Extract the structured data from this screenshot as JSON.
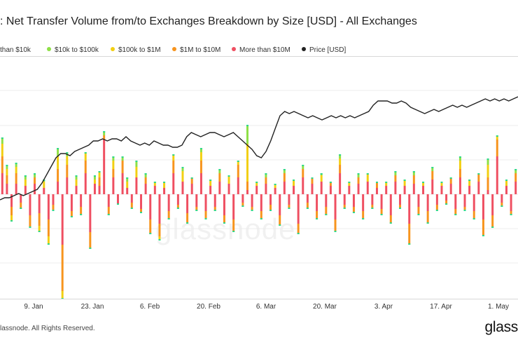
{
  "title": ": Net Transfer Volume from/to Exchanges Breakdown by Size [USD] - All Exchanges",
  "footer": "lassnode. All Rights Reserved.",
  "logo": "glass",
  "watermark": "glassnode",
  "colors": {
    "lt10k": "#8ee046",
    "s10k100k": "#8ee046",
    "s100k1m": "#f2cf12",
    "s1m10m": "#f7941d",
    "gt10m": "#ef4f61",
    "price": "#222222",
    "top_accent": "#2fd98a"
  },
  "chart_data": {
    "type": "bar",
    "stacked": true,
    "legend": [
      {
        "label": "than $10k",
        "color": "#8ee046"
      },
      {
        "label": "$10k to $100k",
        "color": "#8ee046"
      },
      {
        "label": "$100k to $1M",
        "color": "#f2cf12"
      },
      {
        "label": "$1M to $10M",
        "color": "#f7941d"
      },
      {
        "label": "More than $10M",
        "color": "#ef4f61"
      },
      {
        "label": "Price [USD]",
        "color": "#222222"
      }
    ],
    "x_ticks": [
      "9. Jan",
      "23. Jan",
      "6. Feb",
      "20. Feb",
      "6. Mar",
      "20. Mar",
      "3. Apr",
      "17. Apr",
      "1. May"
    ],
    "ylim": [
      -1.0,
      1.0
    ],
    "price_ylim": [
      0,
      1
    ],
    "bars": [
      {
        "gt10m": 0.1,
        "s1m10m": 0.08,
        "s100k1m": 0.06,
        "s10k100k": 0.03
      },
      {
        "gt10m": 0.05,
        "s1m10m": 0.04,
        "s100k1m": 0.03,
        "s10k100k": 0.02
      },
      {
        "gt10m": -0.06,
        "s1m10m": -0.04,
        "s100k1m": -0.03
      },
      {
        "gt10m": 0.05,
        "s1m10m": 0.05,
        "s100k1m": 0.03,
        "s10k100k": 0.02
      },
      {
        "gt10m": -0.04,
        "s1m10m": -0.03
      },
      {
        "gt10m": 0.04,
        "s100k1m": 0.03,
        "s10k100k": 0.02
      },
      {
        "gt10m": -0.1,
        "s1m10m": -0.06
      },
      {
        "gt10m": 0.05,
        "s1m10m": 0.03,
        "s10k100k": 0.02
      },
      {
        "gt10m": -0.09,
        "s1m10m": -0.06,
        "s100k1m": -0.03
      },
      {
        "gt10m": 0.03,
        "s100k1m": 0.03,
        "s10k100k": 0.01
      },
      {
        "gt10m": -0.12,
        "s1m10m": -0.08,
        "s100k1m": -0.04
      },
      {
        "gt10m": -0.05,
        "s1m10m": -0.03
      },
      {
        "gt10m": 0.06,
        "s1m10m": 0.06,
        "s100k1m": 0.06,
        "s10k100k": 0.04
      },
      {
        "gt10m": -0.24,
        "s1m10m": -0.22,
        "s100k1m": -0.04
      },
      {
        "gt10m": 0.08,
        "s1m10m": 0.06,
        "s100k1m": 0.04,
        "s10k100k": 0.02
      },
      {
        "gt10m": -0.08,
        "s1m10m": -0.03
      },
      {
        "gt10m": 0.04,
        "s100k1m": 0.03,
        "s10k100k": 0.02
      },
      {
        "gt10m": -0.06,
        "s1m10m": -0.04
      },
      {
        "gt10m": 0.1,
        "s1m10m": 0.06,
        "s100k1m": 0.04
      },
      {
        "gt10m": -0.18,
        "s1m10m": -0.08
      },
      {
        "gt10m": 0.05,
        "s100k1m": 0.02,
        "s10k100k": 0.02
      },
      {
        "gt10m": 0.04,
        "s1m10m": 0.04,
        "s100k1m": 0.03
      },
      {
        "gt10m": 0.26,
        "s1m10m": 0.02,
        "s10k100k": 0.02
      },
      {
        "gt10m": -0.06,
        "s1m10m": -0.04
      },
      {
        "gt10m": 0.08,
        "s1m10m": 0.04,
        "s100k1m": 0.04,
        "s10k100k": 0.02
      },
      {
        "gt10m": -0.05
      },
      {
        "gt10m": 0.1,
        "s1m10m": 0.06,
        "s10k100k": 0.02
      },
      {
        "gt10m": 0.03,
        "s100k1m": 0.03,
        "s10k100k": 0.02
      },
      {
        "gt10m": -0.04,
        "s1m10m": -0.03
      },
      {
        "gt10m": 0.08,
        "s100k1m": 0.05,
        "s10k100k": 0.03
      },
      {
        "gt10m": -0.07,
        "s1m10m": -0.02
      },
      {
        "gt10m": 0.05,
        "s1m10m": 0.03,
        "s10k100k": 0.02
      },
      {
        "gt10m": -0.12,
        "s1m10m": -0.07
      },
      {
        "gt10m": 0.04,
        "s100k1m": 0.02
      },
      {
        "gt10m": -0.14,
        "s1m10m": -0.06,
        "s100k1m": -0.02
      },
      {
        "gt10m": 0.03,
        "s100k1m": 0.03
      },
      {
        "gt10m": -0.08,
        "s1m10m": -0.04
      },
      {
        "gt10m": 0.1,
        "s1m10m": 0.06,
        "s100k1m": 0.03
      },
      {
        "gt10m": -0.05,
        "s1m10m": -0.02
      },
      {
        "gt10m": 0.06,
        "s100k1m": 0.05,
        "s10k100k": 0.02
      },
      {
        "gt10m": -0.09,
        "s1m10m": -0.05
      },
      {
        "gt10m": 0.05,
        "s1m10m": 0.03
      },
      {
        "gt10m": -0.06,
        "s1m10m": -0.02
      },
      {
        "gt10m": 0.1,
        "s1m10m": 0.06,
        "s100k1m": 0.04,
        "s10k100k": 0.02
      },
      {
        "gt10m": -0.08,
        "s1m10m": -0.04
      },
      {
        "gt10m": 0.04,
        "s100k1m": 0.03
      },
      {
        "gt10m": -0.06,
        "s1m10m": -0.02
      },
      {
        "gt10m": 0.06,
        "s1m10m": 0.04,
        "s10k100k": 0.02
      },
      {
        "gt10m": -0.1,
        "s1m10m": -0.04
      },
      {
        "gt10m": 0.05,
        "s100k1m": 0.04
      },
      {
        "gt10m": -0.12,
        "s1m10m": -0.06
      },
      {
        "gt10m": 0.08,
        "s1m10m": 0.06,
        "s100k1m": 0.02
      },
      {
        "gt10m": -0.04,
        "s1m10m": -0.02
      },
      {
        "gt10m": 0.02,
        "s1m10m": 0.04,
        "s100k1m": 0.18,
        "s10k100k": 0.09
      },
      {
        "gt10m": -0.06,
        "s1m10m": -0.02
      },
      {
        "gt10m": 0.04,
        "s100k1m": 0.02
      },
      {
        "gt10m": -0.08,
        "s1m10m": -0.04
      },
      {
        "gt10m": 0.05,
        "s1m10m": 0.03,
        "s10k100k": 0.02
      },
      {
        "gt10m": -0.05,
        "s1m10m": -0.03
      },
      {
        "gt10m": 0.03,
        "s100k1m": 0.02
      },
      {
        "gt10m": -0.1,
        "s1m10m": -0.05
      },
      {
        "gt10m": 0.06,
        "s1m10m": 0.04,
        "s10k100k": 0.02
      },
      {
        "gt10m": -0.05,
        "s1m10m": -0.02
      },
      {
        "gt10m": 0.04,
        "s100k1m": 0.03
      },
      {
        "gt10m": -0.14,
        "s1m10m": -0.05
      },
      {
        "gt10m": 0.08,
        "s1m10m": 0.04,
        "s10k100k": 0.02
      },
      {
        "gt10m": -0.04,
        "s1m10m": -0.03
      },
      {
        "gt10m": 0.05,
        "s1m10m": 0.03
      },
      {
        "gt10m": -0.08,
        "s1m10m": -0.04
      },
      {
        "gt10m": 0.06,
        "s100k1m": 0.03,
        "s10k100k": 0.01
      },
      {
        "gt10m": -0.06,
        "s1m10m": -0.04
      },
      {
        "gt10m": 0.04,
        "s1m10m": 0.02
      },
      {
        "gt10m": -0.12,
        "s1m10m": -0.06
      },
      {
        "gt10m": 0.1,
        "s1m10m": 0.04,
        "s100k1m": 0.03,
        "s10k100k": 0.02
      },
      {
        "gt10m": -0.05,
        "s1m10m": -0.02
      },
      {
        "gt10m": 0.04,
        "s100k1m": 0.02
      },
      {
        "gt10m": -0.06,
        "s1m10m": -0.03
      },
      {
        "gt10m": 0.05,
        "s1m10m": 0.03,
        "s10k100k": 0.02
      },
      {
        "gt10m": -0.08,
        "s1m10m": -0.04
      },
      {
        "gt10m": 0.06,
        "s100k1m": 0.04
      },
      {
        "gt10m": -0.05,
        "s1m10m": -0.02
      },
      {
        "gt10m": 0.03,
        "s1m10m": 0.03
      },
      {
        "gt10m": -0.07,
        "s1m10m": -0.03
      },
      {
        "gt10m": 0.04,
        "s100k1m": 0.02
      },
      {
        "gt10m": -0.1,
        "s1m10m": -0.04
      },
      {
        "gt10m": 0.06,
        "s1m10m": 0.03,
        "s10k100k": 0.02
      },
      {
        "gt10m": -0.05,
        "s1m10m": -0.02
      },
      {
        "gt10m": 0.04,
        "s100k1m": 0.03
      },
      {
        "gt10m": -0.14,
        "s1m10m": -0.1
      },
      {
        "gt10m": 0.05,
        "s1m10m": 0.04,
        "s10k100k": 0.02
      },
      {
        "gt10m": -0.06,
        "s1m10m": -0.04
      },
      {
        "gt10m": 0.04,
        "s100k1m": 0.02
      },
      {
        "gt10m": -0.08,
        "s1m10m": -0.06
      },
      {
        "gt10m": 0.07,
        "s1m10m": 0.04,
        "s10k100k": 0.02
      },
      {
        "gt10m": -0.05,
        "s1m10m": -0.03
      },
      {
        "gt10m": 0.04,
        "s100k1m": 0.02
      },
      {
        "gt10m": -0.03,
        "s1m10m": -0.02
      },
      {
        "gt10m": 0.05,
        "s1m10m": 0.03
      },
      {
        "gt10m": -0.07,
        "s1m10m": -0.03
      },
      {
        "gt10m": 0.08,
        "s1m10m": 0.04,
        "s100k1m": 0.04,
        "s10k100k": 0.02
      },
      {
        "gt10m": -0.06,
        "s1m10m": -0.02
      },
      {
        "gt10m": 0.04,
        "s100k1m": 0.03
      },
      {
        "gt10m": -0.08,
        "s1m10m": -0.04
      },
      {
        "gt10m": 0.06,
        "s1m10m": 0.04
      },
      {
        "gt10m": -0.12,
        "s1m10m": -0.08
      },
      {
        "gt10m": 0.02,
        "s1m10m": 0.06,
        "s100k1m": 0.06,
        "s10k100k": 0.03
      },
      {
        "gt10m": -0.1,
        "s1m10m": -0.06
      },
      {
        "gt10m": 0.18,
        "s1m10m": 0.08,
        "s100k1m": 0.02
      },
      {
        "gt10m": -0.04,
        "s1m10m": -0.02
      },
      {
        "gt10m": 0.04,
        "s100k1m": 0.03
      },
      {
        "gt10m": -0.08,
        "s1m10m": -0.02
      },
      {
        "gt10m": 0.06,
        "s1m10m": 0.04,
        "s10k100k": 0.02
      }
    ],
    "price": [
      0.32,
      0.33,
      0.33,
      0.34,
      0.35,
      0.34,
      0.35,
      0.36,
      0.37,
      0.4,
      0.44,
      0.48,
      0.52,
      0.54,
      0.54,
      0.53,
      0.55,
      0.56,
      0.57,
      0.58,
      0.6,
      0.6,
      0.61,
      0.6,
      0.61,
      0.61,
      0.6,
      0.62,
      0.6,
      0.59,
      0.58,
      0.59,
      0.58,
      0.6,
      0.59,
      0.58,
      0.58,
      0.57,
      0.57,
      0.58,
      0.62,
      0.64,
      0.63,
      0.62,
      0.63,
      0.64,
      0.64,
      0.63,
      0.62,
      0.63,
      0.64,
      0.62,
      0.6,
      0.58,
      0.56,
      0.53,
      0.52,
      0.55,
      0.6,
      0.66,
      0.72,
      0.74,
      0.73,
      0.74,
      0.73,
      0.72,
      0.71,
      0.72,
      0.71,
      0.7,
      0.71,
      0.72,
      0.71,
      0.72,
      0.71,
      0.72,
      0.71,
      0.72,
      0.73,
      0.74,
      0.77,
      0.79,
      0.79,
      0.79,
      0.78,
      0.78,
      0.79,
      0.78,
      0.76,
      0.75,
      0.74,
      0.73,
      0.74,
      0.75,
      0.74,
      0.75,
      0.76,
      0.77,
      0.76,
      0.77,
      0.76,
      0.77,
      0.78,
      0.79,
      0.8,
      0.79,
      0.8,
      0.79,
      0.8,
      0.79,
      0.8,
      0.81
    ]
  }
}
